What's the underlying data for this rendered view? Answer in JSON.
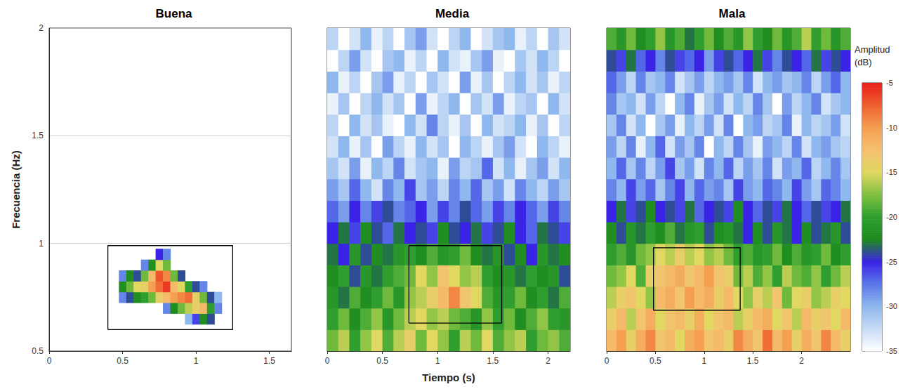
{
  "chart_data": [
    {
      "type": "heatmap",
      "title": "Buena",
      "ylabel": "Frecuencia (Hz)",
      "xlim": [
        0,
        1.65
      ],
      "xticks": [
        0,
        0.5,
        1,
        1.5
      ],
      "ylim": [
        0.5,
        2
      ],
      "yticks": [
        0.5,
        1,
        1.5,
        2
      ],
      "grid": true,
      "x": [
        0.5,
        0.55,
        0.6,
        0.65,
        0.7,
        0.75,
        0.8,
        0.85,
        0.9,
        0.95,
        1,
        1.05,
        1.1,
        1.15
      ],
      "y": [
        0.65,
        0.7,
        0.75,
        0.8,
        0.85,
        0.9,
        0.95
      ],
      "cells": [
        [
          null,
          null,
          null,
          null,
          null,
          null,
          null,
          null,
          null,
          -30,
          -26,
          -22,
          -24,
          null
        ],
        [
          null,
          null,
          null,
          null,
          null,
          null,
          -28,
          -22,
          -18,
          -16,
          -14,
          -12,
          -20,
          -28
        ],
        [
          -28,
          -24,
          -22,
          -20,
          -18,
          -14,
          -12,
          -10,
          -9,
          -8,
          -14,
          -18,
          -24,
          -30
        ],
        [
          -22,
          -18,
          -15,
          -14,
          -10,
          -8,
          -6,
          -12,
          -15,
          -20,
          -24,
          -28,
          null,
          null
        ],
        [
          -28,
          -22,
          -24,
          -18,
          -12,
          -7,
          -9,
          -18,
          -24,
          null,
          null,
          null,
          null,
          null
        ],
        [
          null,
          null,
          null,
          -28,
          -22,
          -15,
          -18,
          null,
          null,
          null,
          null,
          null,
          null,
          null
        ],
        [
          null,
          null,
          null,
          null,
          null,
          -25,
          -28,
          null,
          null,
          null,
          null,
          null,
          null,
          null
        ]
      ],
      "boxes": [
        {
          "x": [
            0.4,
            1.25
          ],
          "y": [
            0.6,
            0.99
          ]
        }
      ]
    },
    {
      "type": "heatmap",
      "title": "Media",
      "xlabel": "Tiempo (s)",
      "xlim": [
        0,
        2.2
      ],
      "xticks": [
        0,
        0.5,
        1,
        1.5,
        2
      ],
      "ylim": [
        0.5,
        2
      ],
      "yticks": [
        0.5,
        1,
        1.5,
        2
      ],
      "grid": true,
      "tick_labels": "x",
      "x": [
        0.05,
        0.15,
        0.25,
        0.35,
        0.45,
        0.55,
        0.65,
        0.75,
        0.85,
        0.95,
        1.05,
        1.15,
        1.25,
        1.35,
        1.45,
        1.55,
        1.65,
        1.75,
        1.85,
        1.95,
        2.05,
        2.15
      ],
      "y": [
        0.55,
        0.65,
        0.75,
        0.85,
        0.95,
        1.05,
        1.15,
        1.25,
        1.35,
        1.45,
        1.55,
        1.65,
        1.75,
        1.85,
        1.95
      ],
      "cells": [
        [
          -18,
          -16,
          -20,
          -17,
          -15,
          -19,
          -16,
          -14,
          -18,
          -15,
          -17,
          -20,
          -16,
          -18,
          -15,
          -19,
          -17,
          -16,
          -20,
          -18,
          -17,
          -19
        ],
        [
          -20,
          -18,
          -22,
          -19,
          -17,
          -21,
          -18,
          -16,
          -15,
          -17,
          -16,
          -18,
          -19,
          -21,
          -17,
          -20,
          -18,
          -22,
          -19,
          -17,
          -20,
          -21
        ],
        [
          -21,
          -23,
          -19,
          -22,
          -20,
          -18,
          -21,
          -17,
          -16,
          -14,
          -12,
          -9,
          -13,
          -15,
          -19,
          -21,
          -20,
          -18,
          -22,
          -20,
          -23,
          -19
        ],
        [
          -22,
          -20,
          -24,
          -21,
          -23,
          -20,
          -19,
          -18,
          -15,
          -17,
          -13,
          -15,
          -17,
          -16,
          -20,
          -22,
          -21,
          -23,
          -20,
          -22,
          -21,
          -24
        ],
        [
          -23,
          -25,
          -21,
          -24,
          -22,
          -23,
          -21,
          -20,
          -22,
          -19,
          -21,
          -20,
          -18,
          -22,
          -23,
          -21,
          -24,
          -22,
          -25,
          -21,
          -23,
          -22
        ],
        [
          -25,
          -23,
          -26,
          -22,
          -24,
          -27,
          -23,
          -25,
          -24,
          -26,
          -22,
          -24,
          -25,
          -23,
          -26,
          -24,
          -22,
          -25,
          -27,
          -23,
          -24,
          -26
        ],
        [
          -27,
          -29,
          -25,
          -28,
          -26,
          -24,
          -28,
          -27,
          -25,
          -29,
          -26,
          -28,
          -24,
          -27,
          -29,
          -26,
          -28,
          -25,
          -27,
          -29,
          -26,
          -28
        ],
        [
          -29,
          -31,
          -27,
          -30,
          -33,
          -28,
          -30,
          -26,
          -31,
          -29,
          -32,
          -28,
          -30,
          -27,
          -31,
          -29,
          -33,
          -28,
          -30,
          -32,
          -29,
          -31
        ],
        [
          -31,
          -33,
          -29,
          -34,
          -30,
          -32,
          -28,
          -33,
          -31,
          -30,
          -34,
          -29,
          -32,
          -31,
          -27,
          -33,
          -30,
          -34,
          -31,
          -29,
          -33,
          -30
        ],
        [
          -33,
          -30,
          -34,
          -31,
          -35,
          -29,
          -32,
          -34,
          -30,
          -33,
          -31,
          -35,
          -30,
          -32,
          -34,
          -31,
          -29,
          -33,
          -35,
          -30,
          -32,
          -34
        ],
        [
          -32,
          -35,
          -30,
          -33,
          -31,
          -34,
          -35,
          -30,
          -33,
          -28,
          -32,
          -34,
          -31,
          -35,
          -30,
          -33,
          -32,
          -30,
          -34,
          -31,
          -35,
          -32
        ],
        [
          -34,
          -31,
          -35,
          -32,
          -30,
          -33,
          -31,
          -35,
          -29,
          -34,
          -32,
          -30,
          -35,
          -31,
          -33,
          -29,
          -34,
          -32,
          -31,
          -35,
          -30,
          -33
        ],
        [
          -30,
          -34,
          -32,
          -35,
          -31,
          -29,
          -34,
          -32,
          -35,
          -31,
          -33,
          -35,
          -29,
          -34,
          -31,
          -35,
          -32,
          -30,
          -33,
          -31,
          -34,
          -32
        ],
        [
          -35,
          -32,
          -29,
          -33,
          -35,
          -31,
          -30,
          -34,
          -32,
          -35,
          -30,
          -33,
          -34,
          -31,
          -29,
          -34,
          -35,
          -31,
          -33,
          -30,
          -32,
          -35
        ],
        [
          -32,
          -35,
          -33,
          -30,
          -34,
          -32,
          -35,
          -31,
          -29,
          -33,
          -35,
          -32,
          -30,
          -35,
          -33,
          -31,
          -30,
          -34,
          -32,
          -35,
          -31,
          -33
        ]
      ],
      "boxes": [
        {
          "x": [
            0.74,
            1.58
          ],
          "y": [
            0.63,
            0.99
          ]
        }
      ]
    },
    {
      "type": "heatmap",
      "title": "Mala",
      "xlim": [
        0,
        2.5
      ],
      "xticks": [
        0,
        0.5,
        1,
        1.5,
        2
      ],
      "ylim": [
        0.5,
        2
      ],
      "yticks": [
        0.5,
        1,
        1.5,
        2
      ],
      "grid": true,
      "tick_labels": "x",
      "x": [
        0.05,
        0.15,
        0.25,
        0.35,
        0.45,
        0.55,
        0.65,
        0.75,
        0.85,
        0.95,
        1.05,
        1.15,
        1.25,
        1.35,
        1.45,
        1.55,
        1.65,
        1.75,
        1.85,
        1.95,
        2.05,
        2.15,
        2.25,
        2.35,
        2.45
      ],
      "y": [
        0.55,
        0.65,
        0.75,
        0.85,
        0.95,
        1.05,
        1.15,
        1.25,
        1.35,
        1.45,
        1.55,
        1.65,
        1.75,
        1.85,
        1.95
      ],
      "cells": [
        [
          -12,
          -10,
          -14,
          -11,
          -9,
          -13,
          -12,
          -15,
          -11,
          -10,
          -13,
          -12,
          -14,
          -9,
          -11,
          -13,
          -8,
          -12,
          -10,
          -14,
          -11,
          -13,
          -9,
          -12,
          -14
        ],
        [
          -14,
          -12,
          -16,
          -13,
          -11,
          -15,
          -13,
          -12,
          -14,
          -11,
          -15,
          -13,
          -12,
          -16,
          -14,
          -12,
          -11,
          -15,
          -13,
          -16,
          -12,
          -14,
          -13,
          -15,
          -12
        ],
        [
          -16,
          -14,
          -13,
          -15,
          -17,
          -12,
          -11,
          -13,
          -10,
          -12,
          -11,
          -14,
          -12,
          -15,
          -17,
          -14,
          -16,
          -13,
          -18,
          -15,
          -14,
          -17,
          -16,
          -14,
          -15
        ],
        [
          -18,
          -17,
          -15,
          -19,
          -14,
          -13,
          -12,
          -11,
          -13,
          -12,
          -10,
          -13,
          -14,
          -18,
          -16,
          -19,
          -17,
          -20,
          -16,
          -18,
          -19,
          -17,
          -20,
          -18,
          -16
        ],
        [
          -20,
          -19,
          -21,
          -18,
          -17,
          -15,
          -16,
          -14,
          -16,
          -15,
          -17,
          -16,
          -18,
          -20,
          -19,
          -21,
          -20,
          -18,
          -22,
          -19,
          -21,
          -20,
          -18,
          -22,
          -20
        ],
        [
          -22,
          -24,
          -21,
          -23,
          -20,
          -22,
          -19,
          -23,
          -21,
          -20,
          -24,
          -22,
          -21,
          -23,
          -25,
          -22,
          -24,
          -21,
          -23,
          -25,
          -22,
          -24,
          -23,
          -21,
          -24
        ],
        [
          -25,
          -23,
          -26,
          -24,
          -22,
          -25,
          -24,
          -26,
          -23,
          -27,
          -25,
          -24,
          -26,
          -22,
          -25,
          -27,
          -24,
          -26,
          -23,
          -25,
          -27,
          -24,
          -26,
          -25,
          -23
        ],
        [
          -28,
          -30,
          -26,
          -29,
          -27,
          -31,
          -28,
          -26,
          -30,
          -27,
          -29,
          -28,
          -31,
          -26,
          -29,
          -30,
          -27,
          -28,
          -30,
          -26,
          -29,
          -31,
          -27,
          -28,
          -30
        ],
        [
          -30,
          -27,
          -31,
          -28,
          -32,
          -29,
          -26,
          -31,
          -29,
          -33,
          -28,
          -30,
          -27,
          -32,
          -29,
          -31,
          -28,
          -33,
          -29,
          -30,
          -27,
          -32,
          -30,
          -28,
          -31
        ],
        [
          -29,
          -32,
          -28,
          -34,
          -30,
          -27,
          -33,
          -29,
          -31,
          -28,
          -35,
          -30,
          -32,
          -28,
          -31,
          -34,
          -29,
          -30,
          -32,
          -28,
          -33,
          -30,
          -29,
          -31,
          -32
        ],
        [
          -31,
          -28,
          -33,
          -30,
          -35,
          -31,
          -29,
          -34,
          -30,
          -32,
          -29,
          -33,
          -28,
          -35,
          -30,
          -29,
          -32,
          -31,
          -28,
          -34,
          -30,
          -32,
          -31,
          -29,
          -33
        ],
        [
          -28,
          -31,
          -30,
          -33,
          -29,
          -32,
          -35,
          -30,
          -28,
          -34,
          -31,
          -29,
          -33,
          -30,
          -32,
          -28,
          -31,
          -35,
          -29,
          -32,
          -30,
          -28,
          -33,
          -31,
          -30
        ],
        [
          -27,
          -29,
          -32,
          -28,
          -31,
          -30,
          -28,
          -33,
          -31,
          -29,
          -32,
          -30,
          -29,
          -31,
          -28,
          -33,
          -30,
          -29,
          -31,
          -30,
          -28,
          -32,
          -29,
          -27,
          -30
        ],
        [
          -24,
          -26,
          -23,
          -27,
          -25,
          -28,
          -24,
          -26,
          -27,
          -25,
          -29,
          -26,
          -24,
          -27,
          -25,
          -23,
          -26,
          -28,
          -24,
          -25,
          -27,
          -23,
          -26,
          -24,
          -25
        ],
        [
          -19,
          -21,
          -18,
          -22,
          -20,
          -17,
          -21,
          -19,
          -23,
          -20,
          -18,
          -22,
          -19,
          -21,
          -17,
          -20,
          -22,
          -18,
          -21,
          -19,
          -16,
          -20,
          -18,
          -21,
          -19
        ]
      ],
      "boxes": [
        {
          "x": [
            0.48,
            1.37
          ],
          "y": [
            0.69,
            0.98
          ]
        }
      ],
      "colorbar": {
        "title": "Amplitud (dB)",
        "range": [
          -35,
          -5
        ],
        "ticks": [
          -5,
          -10,
          -15,
          -20,
          -25,
          -30,
          -35
        ]
      }
    }
  ]
}
